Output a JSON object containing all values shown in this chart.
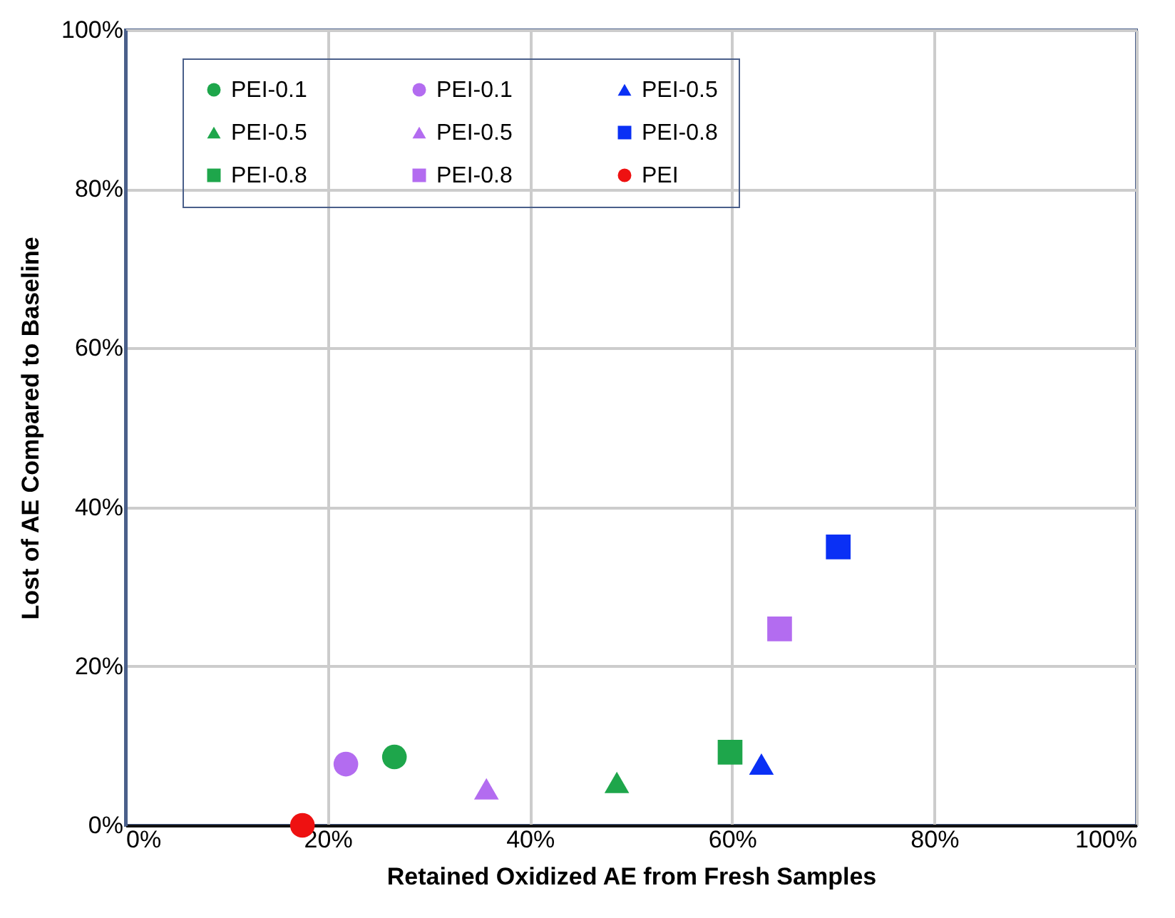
{
  "chart_data": {
    "type": "scatter",
    "xlabel": "Retained Oxidized AE from Fresh Samples",
    "ylabel": "Lost of AE Compared to Baseline",
    "xlim": [
      0,
      100
    ],
    "ylim": [
      0,
      100
    ],
    "xticks": [
      {
        "value": 0,
        "label": "0%"
      },
      {
        "value": 20,
        "label": "20%"
      },
      {
        "value": 40,
        "label": "40%"
      },
      {
        "value": 60,
        "label": "60%"
      },
      {
        "value": 80,
        "label": "80%"
      },
      {
        "value": 100,
        "label": "100%"
      }
    ],
    "yticks": [
      {
        "value": 0,
        "label": "0%"
      },
      {
        "value": 20,
        "label": "20%"
      },
      {
        "value": 40,
        "label": "40%"
      },
      {
        "value": 60,
        "label": "60%"
      },
      {
        "value": 80,
        "label": "80%"
      },
      {
        "value": 100,
        "label": "100%"
      }
    ],
    "grid": true,
    "legend": "top",
    "series": [
      {
        "name": "PEI-0.1",
        "color": "#1ea64b",
        "marker": "circle",
        "x": [
          26.6
        ],
        "values": [
          8.6
        ]
      },
      {
        "name": "PEI-0.5",
        "color": "#1ea64b",
        "marker": "triangle",
        "x": [
          48.6
        ],
        "values": [
          5.4
        ]
      },
      {
        "name": "PEI-0.8",
        "color": "#1ea64b",
        "marker": "square",
        "x": [
          59.8
        ],
        "values": [
          9.2
        ]
      },
      {
        "name": "PEI-0.1",
        "color": "#b36cf0",
        "marker": "circle",
        "x": [
          21.8
        ],
        "values": [
          7.7
        ]
      },
      {
        "name": "PEI-0.5",
        "color": "#b36cf0",
        "marker": "triangle",
        "x": [
          35.7
        ],
        "values": [
          4.6
        ]
      },
      {
        "name": "PEI-0.8",
        "color": "#b36cf0",
        "marker": "square",
        "x": [
          64.7
        ],
        "values": [
          24.7
        ]
      },
      {
        "name": "PEI-0.5",
        "color": "#0a30f5",
        "marker": "triangle",
        "x": [
          62.9
        ],
        "values": [
          7.7
        ]
      },
      {
        "name": "PEI-0.8",
        "color": "#0a30f5",
        "marker": "square",
        "x": [
          70.5
        ],
        "values": [
          35.0
        ]
      },
      {
        "name": "PEI",
        "color": "#ee1111",
        "marker": "circle",
        "x": [
          17.5
        ],
        "values": [
          0
        ]
      }
    ]
  }
}
